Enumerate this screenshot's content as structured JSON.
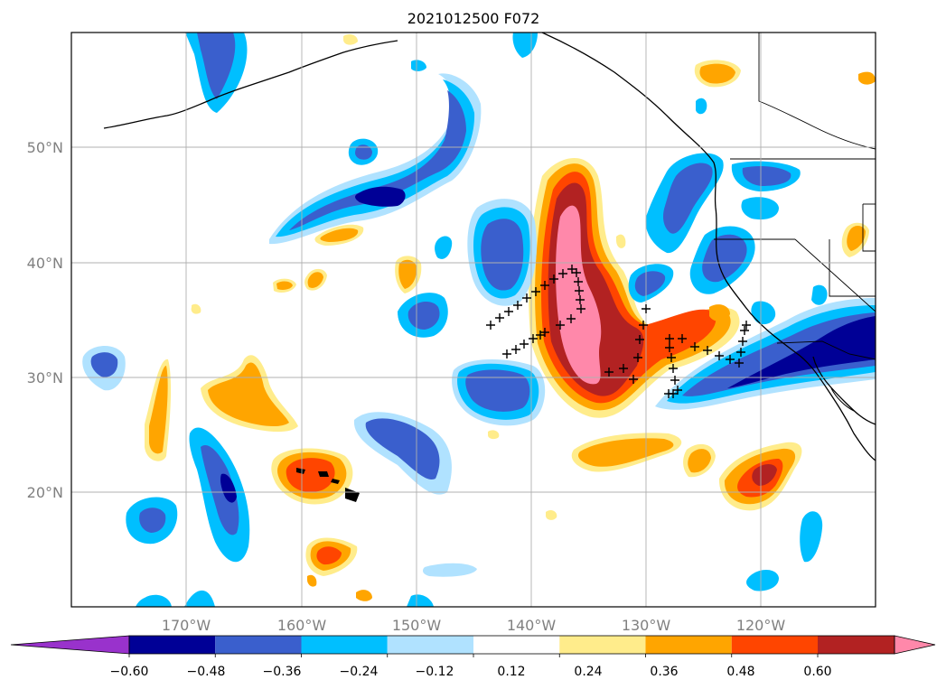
{
  "title": "2021012500 F072",
  "lat_labels": [
    "50°N",
    "40°N",
    "30°N",
    "20°N"
  ],
  "lon_labels": [
    "170°W",
    "160°W",
    "150°W",
    "140°W",
    "130°W",
    "120°W"
  ],
  "colorbar": {
    "tick_labels": [
      "−0.60",
      "−0.48",
      "−0.36",
      "−0.24",
      "−0.12",
      "0.12",
      "0.24",
      "0.36",
      "0.48",
      "0.60"
    ],
    "colors": [
      "#9932cc",
      "#000096",
      "#3a5fcd",
      "#00bfff",
      "#b0e2ff",
      "#ffffff",
      "#ffec8b",
      "#ffa500",
      "#ff4500",
      "#b22222",
      "#ff88aa"
    ]
  },
  "colors": {
    "land_line": "#000000",
    "grid": "#b0b0b0",
    "markers": "#000000"
  }
}
